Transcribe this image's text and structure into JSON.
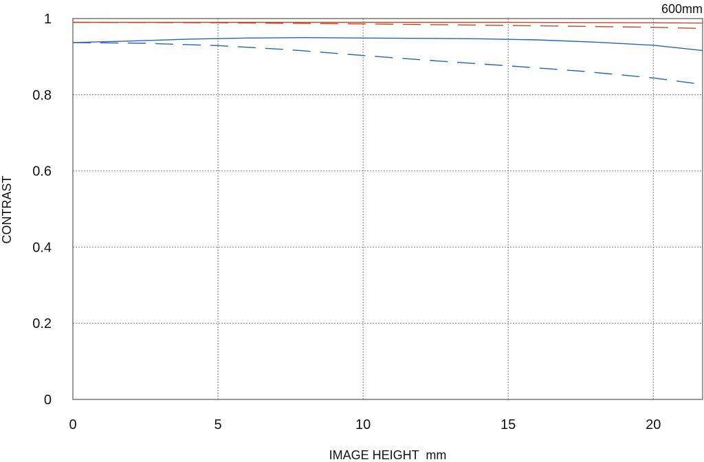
{
  "chart_data": {
    "type": "line",
    "title": "600mm",
    "xlabel": "IMAGE HEIGHT  mm",
    "ylabel": "CONTRAST",
    "xlim": [
      0,
      21.7
    ],
    "ylim": [
      0,
      1
    ],
    "x_ticks": [
      0,
      5,
      10,
      15,
      20
    ],
    "x_tick_labels": [
      "0",
      "5",
      "10",
      "15",
      "20"
    ],
    "y_ticks": [
      0,
      0.2,
      0.4,
      0.6,
      0.8,
      1
    ],
    "y_tick_labels": [
      "0",
      "0.2",
      "0.4",
      "0.6",
      "0.8",
      "1"
    ],
    "grid": true,
    "series": [
      {
        "color": "#c0462a",
        "style": "solid",
        "x": [
          0,
          5,
          10,
          15,
          20,
          21.7
        ],
        "y": [
          0.99,
          0.99,
          0.99,
          0.99,
          0.989,
          0.988
        ]
      },
      {
        "color": "#c0462a",
        "style": "dashed",
        "x": [
          0,
          5,
          10,
          15,
          20,
          21.7
        ],
        "y": [
          0.99,
          0.989,
          0.986,
          0.982,
          0.977,
          0.974
        ]
      },
      {
        "color": "#1f63c4",
        "style": "solid",
        "x": [
          0,
          2,
          4,
          6,
          8,
          10,
          12,
          14,
          16,
          18,
          20,
          21.7
        ],
        "y": [
          0.937,
          0.941,
          0.946,
          0.949,
          0.95,
          0.949,
          0.948,
          0.947,
          0.944,
          0.938,
          0.93,
          0.916
        ]
      },
      {
        "color": "#1f63c4",
        "style": "dashed",
        "x": [
          0,
          2.5,
          5,
          7.5,
          10,
          12.5,
          15,
          17.5,
          20,
          21.7
        ],
        "y": [
          0.937,
          0.935,
          0.929,
          0.918,
          0.903,
          0.889,
          0.876,
          0.862,
          0.844,
          0.827
        ]
      }
    ]
  }
}
